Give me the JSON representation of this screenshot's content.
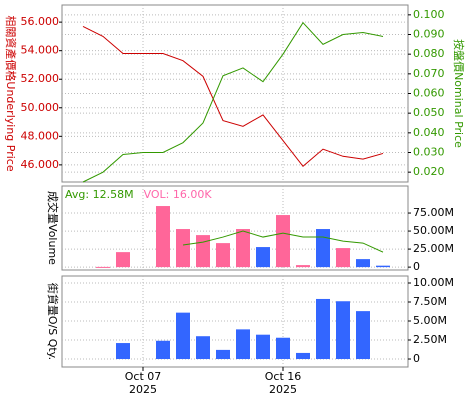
{
  "chart_data": [
    {
      "type": "line",
      "categories": [
        null,
        null,
        null,
        "Oct 07",
        null,
        null,
        null,
        null,
        null,
        null,
        "Oct 16",
        null,
        null,
        null,
        null,
        null
      ],
      "category_years": [
        null,
        null,
        null,
        "2025",
        null,
        null,
        null,
        null,
        null,
        null,
        "2025",
        null,
        null,
        null,
        null,
        null
      ],
      "y_label": "相關資產價格Underlying Price",
      "y2_label": "按盤價Nominal Price",
      "ylim": [
        44.8,
        57.2
      ],
      "yticks": [
        {
          "value": 46,
          "label": "46.000"
        },
        {
          "value": 48,
          "label": "48.000"
        },
        {
          "value": 50,
          "label": "50.000"
        },
        {
          "value": 52,
          "label": "52.000"
        },
        {
          "value": 54,
          "label": "54.000"
        },
        {
          "value": 56,
          "label": "56.000"
        }
      ],
      "y2lim": [
        0.015,
        0.105
      ],
      "y2ticks": [
        {
          "value": 0.02,
          "label": "0.020"
        },
        {
          "value": 0.03,
          "label": "0.030"
        },
        {
          "value": 0.04,
          "label": "0.040"
        },
        {
          "value": 0.05,
          "label": "0.050"
        },
        {
          "value": 0.06,
          "label": "0.060"
        },
        {
          "value": 0.07,
          "label": "0.070"
        },
        {
          "value": 0.08,
          "label": "0.080"
        },
        {
          "value": 0.09,
          "label": "0.090"
        },
        {
          "value": 0.1,
          "label": "0.100"
        }
      ],
      "grid": true,
      "series": [
        {
          "color": "#cc0000",
          "values": [
            55.7,
            55.0,
            53.8,
            53.8,
            53.8,
            53.3,
            52.2,
            49.1,
            48.7,
            49.5,
            47.7,
            45.9,
            47.1,
            46.6,
            46.4,
            46.8
          ]
        },
        {
          "color": "#339900",
          "axis": "y2",
          "values": [
            0.015,
            0.02,
            0.029,
            0.03,
            0.03,
            0.035,
            0.045,
            0.069,
            0.073,
            0.066,
            0.08,
            0.096,
            0.085,
            0.09,
            0.091,
            0.089
          ]
        }
      ]
    },
    {
      "type": "bar",
      "y_label": "成交量Volume",
      "annotations": [
        {
          "text": "Avg: 12.58M",
          "color": "#339900"
        },
        {
          "text": "VOL: 16.00K",
          "color": "#ff66aa"
        }
      ],
      "ylim": [
        -4000000,
        112500000
      ],
      "yticks": [
        0,
        {
          "value": 25000000,
          "label": "25.00M"
        },
        {
          "value": 50000000,
          "label": "50.00M"
        },
        {
          "value": 75000000,
          "label": "75.00M"
        }
      ],
      "grid": true,
      "values": [
        null,
        300000,
        20800000,
        null,
        84700000,
        52800000,
        44400000,
        33300000,
        52800000,
        27800000,
        72200000,
        2800000,
        52800000,
        26400000,
        11100000,
        2000000
      ],
      "colors": [
        null,
        "#ff6699",
        "#ff6699",
        null,
        "#ff6699",
        "#ff6699",
        "#ff6699",
        "#ff6699",
        "#ff6699",
        "#3366ff",
        "#ff6699",
        "#ff6699",
        "#3366ff",
        "#ff6699",
        "#3366ff",
        "#3366ff"
      ],
      "line": {
        "color": "#339900",
        "values": [
          null,
          null,
          null,
          null,
          null,
          30600000,
          34700000,
          41700000,
          50000000,
          41700000,
          47200000,
          41700000,
          41700000,
          36100000,
          33300000,
          20800000
        ]
      }
    },
    {
      "type": "bar",
      "y_label": "街貨量O/S Qty.",
      "ylim": [
        -1050000,
        10920000
      ],
      "yticks": [
        0,
        {
          "value": 2500000,
          "label": "2.50M"
        },
        {
          "value": 5000000,
          "label": "5.00M"
        },
        {
          "value": 7500000,
          "label": "7.50M"
        },
        {
          "value": 10000000,
          "label": "10.00M"
        }
      ],
      "grid": true,
      "color": "#3366ff",
      "values": [
        null,
        null,
        2100000,
        null,
        2400000,
        6100000,
        3000000,
        1200000,
        3900000,
        3200000,
        2800000,
        800000,
        7900000,
        7600000,
        6300000,
        null
      ]
    }
  ]
}
